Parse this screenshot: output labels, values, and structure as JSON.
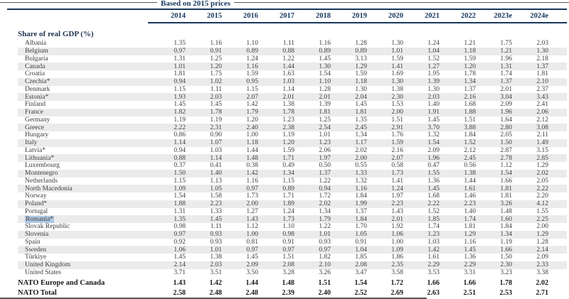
{
  "header": {
    "price_basis_label": "Based on 2015 prices",
    "years": [
      "2014",
      "2015",
      "2016",
      "2017",
      "2018",
      "2019",
      "2020",
      "2021",
      "2022",
      "2023e",
      "2024e"
    ],
    "section_label": "Share of real GDP (%)"
  },
  "colors": {
    "rule_navy": "#17375e",
    "stripe_gray": "#ebebeb",
    "highlight_blue": "#aecbe8",
    "body_text": "#3d3d3d"
  },
  "table": {
    "highlighted_label": "Romania*",
    "rows": [
      {
        "label": "Albania",
        "values": [
          "1.35",
          "1.16",
          "1.10",
          "1.11",
          "1.16",
          "1.28",
          "1.30",
          "1.24",
          "1.21",
          "1.75",
          "2.03"
        ]
      },
      {
        "label": "Belgium",
        "values": [
          "0.97",
          "0.91",
          "0.89",
          "0.88",
          "0.89",
          "0.89",
          "1.01",
          "1.04",
          "1.18",
          "1.21",
          "1.30"
        ]
      },
      {
        "label": "Bulgaria",
        "values": [
          "1.31",
          "1.25",
          "1.24",
          "1.22",
          "1.45",
          "3.13",
          "1.59",
          "1.52",
          "1.59",
          "1.96",
          "2.18"
        ]
      },
      {
        "label": "Canada",
        "values": [
          "1.01",
          "1.20",
          "1.16",
          "1.44",
          "1.30",
          "1.29",
          "1.41",
          "1.27",
          "1.20",
          "1.31",
          "1.37"
        ]
      },
      {
        "label": "Croatia",
        "values": [
          "1.81",
          "1.75",
          "1.59",
          "1.63",
          "1.54",
          "1.59",
          "1.69",
          "1.95",
          "1.78",
          "1.74",
          "1.81"
        ]
      },
      {
        "label": "Czechia*",
        "values": [
          "0.94",
          "1.02",
          "0.95",
          "1.03",
          "1.10",
          "1.18",
          "1.30",
          "1.39",
          "1.34",
          "1.37",
          "2.10"
        ]
      },
      {
        "label": "Denmark",
        "values": [
          "1.15",
          "1.11",
          "1.15",
          "1.14",
          "1.28",
          "1.30",
          "1.38",
          "1.30",
          "1.37",
          "2.01",
          "2.37"
        ]
      },
      {
        "label": "Estonia*",
        "values": [
          "1.93",
          "2.03",
          "2.07",
          "2.01",
          "2.01",
          "2.04",
          "2.30",
          "2.03",
          "2.16",
          "3.04",
          "3.43"
        ]
      },
      {
        "label": "Finland",
        "values": [
          "1.45",
          "1.45",
          "1.42",
          "1.38",
          "1.39",
          "1.45",
          "1.53",
          "1.40",
          "1.68",
          "2.09",
          "2.41"
        ]
      },
      {
        "label": "France",
        "values": [
          "1.82",
          "1.78",
          "1.79",
          "1.78",
          "1.81",
          "1.81",
          "2.00",
          "1.91",
          "1.88",
          "1.96",
          "2.06"
        ]
      },
      {
        "label": "Germany",
        "values": [
          "1.19",
          "1.19",
          "1.20",
          "1.23",
          "1.25",
          "1.35",
          "1.51",
          "1.45",
          "1.51",
          "1.64",
          "2.12"
        ]
      },
      {
        "label": "Greece",
        "values": [
          "2.22",
          "2.31",
          "2.40",
          "2.38",
          "2.54",
          "2.45",
          "2.91",
          "3.70",
          "3.88",
          "2.80",
          "3.08"
        ]
      },
      {
        "label": "Hungary",
        "values": [
          "0.86",
          "0.90",
          "1.00",
          "1.19",
          "1.01",
          "1.34",
          "1.76",
          "1.32",
          "1.84",
          "2.05",
          "2.11"
        ]
      },
      {
        "label": "Italy",
        "values": [
          "1.14",
          "1.07",
          "1.18",
          "1.20",
          "1.23",
          "1.17",
          "1.59",
          "1.54",
          "1.52",
          "1.50",
          "1.49"
        ]
      },
      {
        "label": "Latvia*",
        "values": [
          "0.94",
          "1.03",
          "1.44",
          "1.59",
          "2.06",
          "2.02",
          "2.16",
          "2.09",
          "2.12",
          "2.87",
          "3.15"
        ]
      },
      {
        "label": "Lithuania*",
        "values": [
          "0.88",
          "1.14",
          "1.48",
          "1.71",
          "1.97",
          "2.00",
          "2.07",
          "1.96",
          "2.45",
          "2.78",
          "2.85"
        ]
      },
      {
        "label": "Luxembourg",
        "values": [
          "0.37",
          "0.41",
          "0.38",
          "0.49",
          "0.50",
          "0.55",
          "0.58",
          "0.47",
          "0.56",
          "1.12",
          "1.29"
        ]
      },
      {
        "label": "Montenegro",
        "values": [
          "1.50",
          "1.40",
          "1.42",
          "1.34",
          "1.37",
          "1.33",
          "1.73",
          "1.55",
          "1.38",
          "1.54",
          "2.02"
        ]
      },
      {
        "label": "Netherlands",
        "values": [
          "1.15",
          "1.13",
          "1.16",
          "1.15",
          "1.22",
          "1.32",
          "1.41",
          "1.36",
          "1.44",
          "1.66",
          "2.05"
        ]
      },
      {
        "label": "North Macedonia",
        "values": [
          "1.09",
          "1.05",
          "0.97",
          "0.89",
          "0.94",
          "1.16",
          "1.24",
          "1.45",
          "1.61",
          "1.81",
          "2.22"
        ]
      },
      {
        "label": "Norway",
        "values": [
          "1.54",
          "1.58",
          "1.73",
          "1.71",
          "1.72",
          "1.84",
          "1.97",
          "1.68",
          "1.46",
          "1.81",
          "2.20"
        ]
      },
      {
        "label": "Poland*",
        "values": [
          "1.88",
          "2.23",
          "2.00",
          "1.89",
          "2.02",
          "1.99",
          "2.23",
          "2.22",
          "2.23",
          "3.26",
          "4.12"
        ]
      },
      {
        "label": "Portugal",
        "values": [
          "1.31",
          "1.33",
          "1.27",
          "1.24",
          "1.34",
          "1.37",
          "1.43",
          "1.52",
          "1.40",
          "1.48",
          "1.55"
        ]
      },
      {
        "label": "Romania*",
        "values": [
          "1.35",
          "1.45",
          "1.43",
          "1.73",
          "1.79",
          "1.84",
          "2.01",
          "1.85",
          "1.74",
          "1.60",
          "2.25"
        ]
      },
      {
        "label": "Slovak Republic",
        "values": [
          "0.98",
          "1.11",
          "1.12",
          "1.10",
          "1.22",
          "1.70",
          "1.92",
          "1.74",
          "1.81",
          "1.84",
          "2.00"
        ]
      },
      {
        "label": "Slovenia",
        "values": [
          "0.97",
          "0.93",
          "1.00",
          "0.98",
          "1.01",
          "1.05",
          "1.06",
          "1.23",
          "1.29",
          "1.34",
          "1.29"
        ]
      },
      {
        "label": "Spain",
        "values": [
          "0.92",
          "0.93",
          "0.81",
          "0.91",
          "0.93",
          "0.91",
          "1.00",
          "1.03",
          "1.16",
          "1.19",
          "1.28"
        ]
      },
      {
        "label": "Sweden",
        "values": [
          "1.06",
          "1.01",
          "0.97",
          "0.97",
          "0.97",
          "1.04",
          "1.09",
          "1.42",
          "1.45",
          "1.66",
          "2.14"
        ]
      },
      {
        "label": "Türkiye",
        "values": [
          "1.45",
          "1.38",
          "1.45",
          "1.51",
          "1.82",
          "1.85",
          "1.86",
          "1.61",
          "1.36",
          "1.50",
          "2.09"
        ]
      },
      {
        "label": "United Kingdom",
        "values": [
          "2.14",
          "2.03",
          "2.09",
          "2.08",
          "2.10",
          "2.08",
          "2.35",
          "2.29",
          "2.29",
          "2.30",
          "2.33"
        ]
      },
      {
        "label": "United States",
        "values": [
          "3.71",
          "3.51",
          "3.50",
          "3.28",
          "3.26",
          "3.47",
          "3.58",
          "3.53",
          "3.31",
          "3.23",
          "3.38"
        ]
      }
    ],
    "summary_rows": [
      {
        "label": "NATO Europe and Canada",
        "values": [
          "1.43",
          "1.42",
          "1.44",
          "1.48",
          "1.51",
          "1.54",
          "1.72",
          "1.66",
          "1.66",
          "1.78",
          "2.02"
        ]
      },
      {
        "label": "NATO Total",
        "values": [
          "2.58",
          "2.48",
          "2.48",
          "2.39",
          "2.40",
          "2.52",
          "2.69",
          "2.63",
          "2.51",
          "2.53",
          "2.71"
        ]
      }
    ]
  }
}
